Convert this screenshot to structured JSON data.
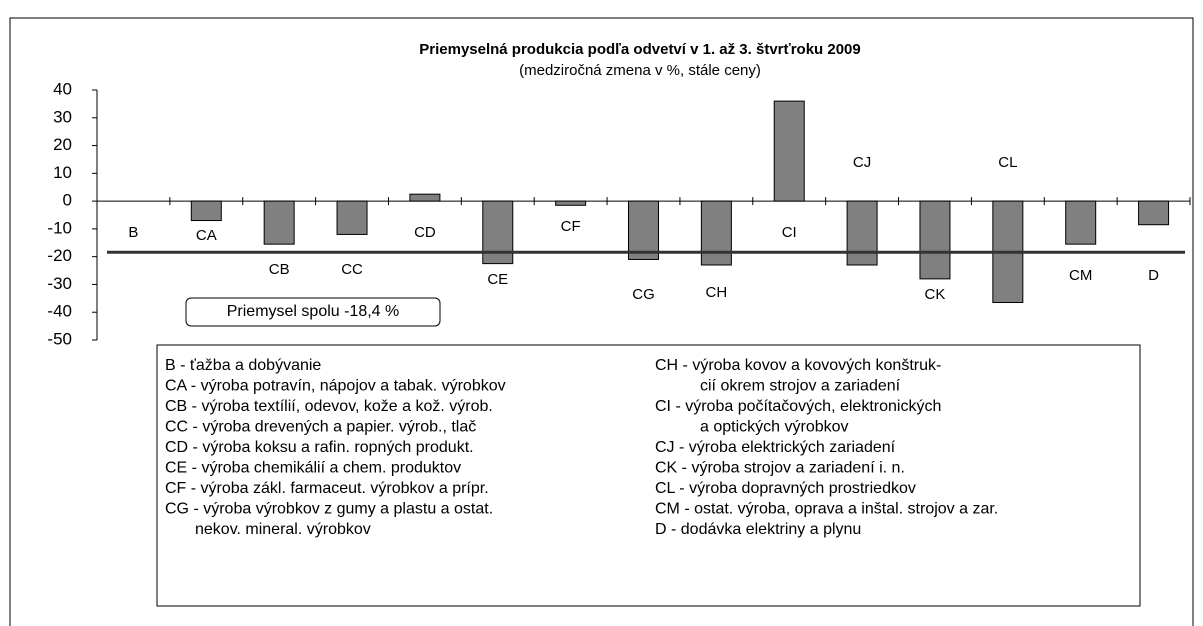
{
  "chart_data": {
    "type": "bar",
    "title": "Priemyselná produkcia podľa odvetví v 1. až 3. štvrťroku 2009",
    "subtitle": "(medziročná zmena v %, stále ceny)",
    "categories": [
      "B",
      "CA",
      "CB",
      "CC",
      "CD",
      "CE",
      "CF",
      "CG",
      "CH",
      "CI",
      "CJ",
      "CK",
      "CL",
      "CM",
      "D"
    ],
    "values": [
      0,
      -7,
      -15.5,
      -12,
      2.5,
      -22.5,
      -1.5,
      -21,
      -23,
      36,
      -23,
      -28,
      -36.5,
      -15.5,
      -8.5
    ],
    "color": "#808080",
    "ylim": [
      -50,
      40
    ],
    "yticks": [
      -50,
      -40,
      -30,
      -20,
      -10,
      0,
      10,
      20,
      30,
      40
    ],
    "total_line": {
      "value": -18.4,
      "label": "Priemysel spolu -18,4 %"
    },
    "legend_text": {
      "left": [
        "B - ťažba a dobývanie",
        "CA - výroba potravín, nápojov a tabak. výrobkov",
        "CB - výroba textílií, odevov, kože a kož. výrob.",
        "CC - výroba drevených a papier. výrob., tlač",
        "CD - výroba koksu a rafin. ropných produkt.",
        "CE - výroba chemikálií a chem. produktov",
        "CF - výroba zákl. farmaceut. výrobkov a prípr.",
        "CG - výroba výrobkov z gumy a plastu a ostat.",
        "nekov. mineral. výrobkov"
      ],
      "right": [
        "CH - výroba kovov a kovových konštruk-",
        "cií okrem strojov a zariadení",
        "CI - výroba počítačových, elektronických",
        "a optických výrobkov",
        "CJ - výroba elektrických zariadení",
        "CK - výroba strojov a zariadení i. n.",
        "CL - výroba dopravných prostriedkov",
        "CM - ostat. výroba, oprava a inštal. strojov a zar.",
        "D - dodávka elektriny a plynu"
      ]
    }
  }
}
